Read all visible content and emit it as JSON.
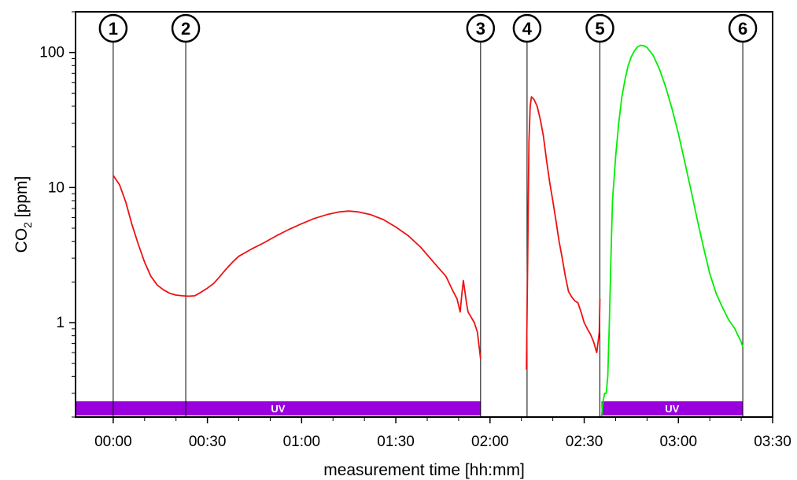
{
  "chart_data": {
    "type": "line",
    "xlabel": "measurement time [hh:mm]",
    "ylabel_main": "CO",
    "ylabel_sub": "2",
    "ylabel_unit": " [ppm]",
    "y_scale": "log",
    "xlim_minutes": [
      -12,
      210
    ],
    "ylim": [
      0.2,
      200
    ],
    "x_ticks": [
      {
        "minutes": 0,
        "label": "00:00"
      },
      {
        "minutes": 30,
        "label": "00:30"
      },
      {
        "minutes": 60,
        "label": "01:00"
      },
      {
        "minutes": 90,
        "label": "01:30"
      },
      {
        "minutes": 120,
        "label": "02:00"
      },
      {
        "minutes": 150,
        "label": "02:30"
      },
      {
        "minutes": 180,
        "label": "03:00"
      },
      {
        "minutes": 210,
        "label": "03:30"
      }
    ],
    "y_ticks": [
      {
        "value": 1,
        "label": "1"
      },
      {
        "value": 10,
        "label": "10"
      },
      {
        "value": 100,
        "label": "100"
      }
    ],
    "markers": [
      {
        "label": "1",
        "minutes": 0
      },
      {
        "label": "2",
        "minutes": 23.1
      },
      {
        "label": "3",
        "minutes": 117
      },
      {
        "label": "4",
        "minutes": 131.8
      },
      {
        "label": "5",
        "minutes": 155
      },
      {
        "label": "6",
        "minutes": 200.5
      }
    ],
    "uv_periods": [
      {
        "label": "UV",
        "start_minutes": -12,
        "end_minutes": 117,
        "color": "#9900dd"
      },
      {
        "label": "UV",
        "start_minutes": 155.5,
        "end_minutes": 200.5,
        "color": "#9900dd"
      }
    ],
    "series": [
      {
        "color": "#ee1111",
        "points": [
          [
            0,
            12.3
          ],
          [
            2,
            10.5
          ],
          [
            4,
            7.8
          ],
          [
            6,
            5.3
          ],
          [
            8,
            3.8
          ],
          [
            10,
            2.8
          ],
          [
            12,
            2.2
          ],
          [
            14,
            1.9
          ],
          [
            16,
            1.75
          ],
          [
            18,
            1.65
          ],
          [
            20,
            1.6
          ],
          [
            22,
            1.58
          ],
          [
            24,
            1.57
          ],
          [
            26,
            1.58
          ],
          [
            28,
            1.68
          ],
          [
            30,
            1.8
          ],
          [
            32,
            1.95
          ],
          [
            34,
            2.2
          ],
          [
            36,
            2.5
          ],
          [
            38,
            2.8
          ],
          [
            40,
            3.1
          ],
          [
            44,
            3.5
          ],
          [
            48,
            3.9
          ],
          [
            52,
            4.4
          ],
          [
            56,
            4.9
          ],
          [
            60,
            5.4
          ],
          [
            64,
            5.9
          ],
          [
            68,
            6.3
          ],
          [
            72,
            6.6
          ],
          [
            75,
            6.7
          ],
          [
            78,
            6.6
          ],
          [
            82,
            6.3
          ],
          [
            86,
            5.8
          ],
          [
            90,
            5.1
          ],
          [
            94,
            4.4
          ],
          [
            98,
            3.6
          ],
          [
            102,
            2.8
          ],
          [
            106,
            2.2
          ],
          [
            108,
            1.75
          ],
          [
            109.5,
            1.5
          ],
          [
            110.5,
            1.2
          ],
          [
            111,
            1.6
          ],
          [
            111.5,
            2.05
          ],
          [
            112,
            1.7
          ],
          [
            112.5,
            1.4
          ],
          [
            113,
            1.2
          ],
          [
            115,
            1.0
          ],
          [
            116,
            0.85
          ],
          [
            117,
            0.54
          ]
        ]
      },
      {
        "color": "#ee1111",
        "points": [
          [
            131.6,
            0.45
          ],
          [
            132,
            3
          ],
          [
            132.4,
            22
          ],
          [
            132.8,
            40
          ],
          [
            133.2,
            47
          ],
          [
            134,
            45
          ],
          [
            135,
            40
          ],
          [
            136,
            32
          ],
          [
            137,
            24
          ],
          [
            138,
            16
          ],
          [
            139,
            11
          ],
          [
            140,
            8
          ],
          [
            141,
            5.7
          ],
          [
            142,
            4
          ],
          [
            143,
            3
          ],
          [
            144,
            2.2
          ],
          [
            145,
            1.7
          ],
          [
            146,
            1.55
          ],
          [
            147,
            1.45
          ],
          [
            148,
            1.4
          ],
          [
            149,
            1.2
          ],
          [
            150,
            1.0
          ],
          [
            151,
            0.9
          ],
          [
            152,
            0.82
          ],
          [
            153,
            0.72
          ],
          [
            154,
            0.6
          ],
          [
            154.8,
            0.85
          ],
          [
            155,
            1.5
          ]
        ]
      },
      {
        "color": "#00ee00",
        "points": [
          [
            155.5,
            0.2
          ],
          [
            156,
            0.26
          ],
          [
            156.5,
            0.3
          ],
          [
            157,
            0.3
          ],
          [
            157.5,
            0.4
          ],
          [
            158,
            1.0
          ],
          [
            158.5,
            3
          ],
          [
            159,
            8
          ],
          [
            160,
            17
          ],
          [
            161,
            30
          ],
          [
            162,
            47
          ],
          [
            163,
            63
          ],
          [
            164,
            80
          ],
          [
            165,
            93
          ],
          [
            166,
            103
          ],
          [
            167,
            110
          ],
          [
            168,
            113
          ],
          [
            169,
            112
          ],
          [
            170,
            109
          ],
          [
            172,
            95
          ],
          [
            174,
            75
          ],
          [
            176,
            55
          ],
          [
            178,
            38
          ],
          [
            180,
            25
          ],
          [
            182,
            15.5
          ],
          [
            184,
            9.6
          ],
          [
            186,
            5.8
          ],
          [
            188,
            3.6
          ],
          [
            190,
            2.3
          ],
          [
            192,
            1.65
          ],
          [
            194,
            1.3
          ],
          [
            196,
            1.05
          ],
          [
            198,
            0.9
          ],
          [
            199,
            0.8
          ],
          [
            200,
            0.72
          ],
          [
            200.5,
            0.66
          ]
        ]
      }
    ]
  }
}
